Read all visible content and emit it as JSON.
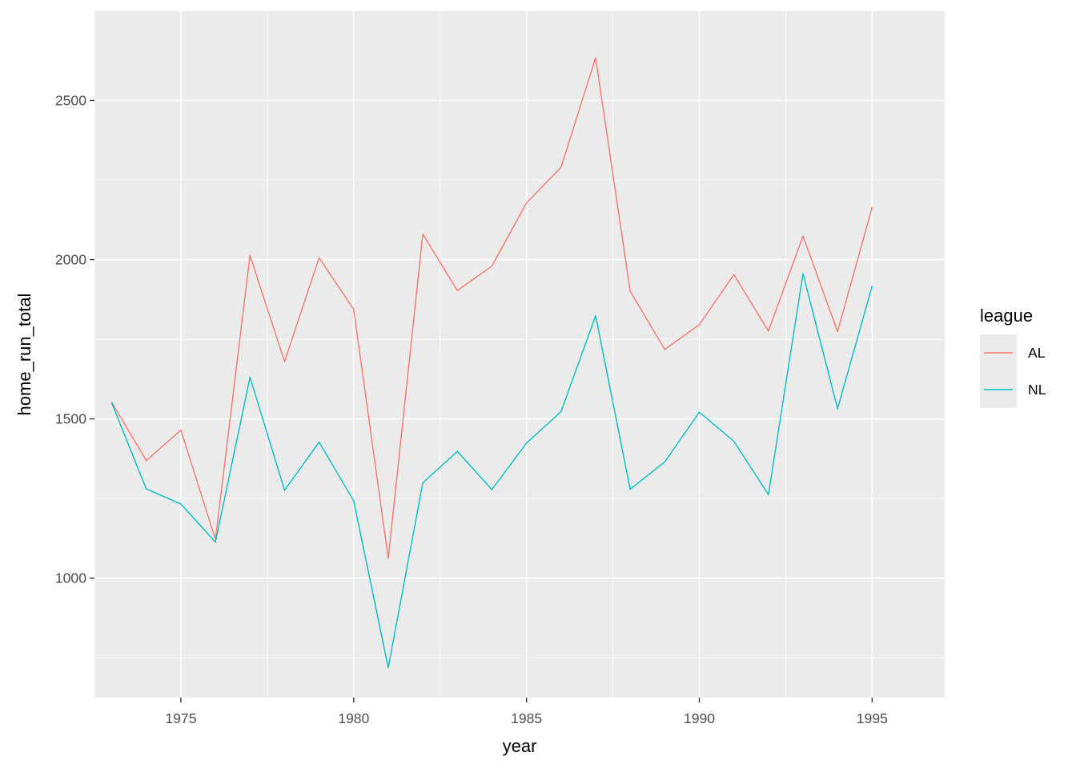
{
  "chart_data": {
    "type": "line",
    "title": "",
    "xlabel": "year",
    "ylabel": "home_run_total",
    "x": [
      1973,
      1974,
      1975,
      1976,
      1977,
      1978,
      1979,
      1980,
      1981,
      1982,
      1983,
      1984,
      1985,
      1986,
      1987,
      1988,
      1989,
      1990,
      1991,
      1992,
      1993,
      1994,
      1995
    ],
    "series": [
      {
        "name": "AL",
        "color": "#F8766D",
        "values": [
          1552,
          1369,
          1465,
          1122,
          2013,
          1680,
          2006,
          1844,
          1062,
          2080,
          1903,
          1980,
          2178,
          2290,
          2634,
          1901,
          1718,
          1796,
          1953,
          1776,
          2074,
          1774,
          2164
        ]
      },
      {
        "name": "NL",
        "color": "#00BFC4",
        "values": [
          1550,
          1280,
          1233,
          1113,
          1631,
          1276,
          1427,
          1243,
          719,
          1299,
          1398,
          1278,
          1424,
          1523,
          1824,
          1279,
          1365,
          1521,
          1430,
          1262,
          1956,
          1532,
          1917
        ]
      }
    ],
    "xlim": [
      1972.5,
      1997.1
    ],
    "ylim": [
      625,
      2780
    ],
    "x_ticks": [
      1975,
      1980,
      1985,
      1990,
      1995
    ],
    "x_minor_ticks": [
      1972.5,
      1977.5,
      1982.5,
      1987.5,
      1992.5
    ],
    "y_ticks": [
      1000,
      1500,
      2000,
      2500
    ],
    "y_minor_ticks": [
      750,
      1250,
      1750,
      2250
    ],
    "grid": true,
    "legend": {
      "title": "league",
      "position": "right"
    },
    "panel_color": "#EBEBEB",
    "grid_color": "#FFFFFF"
  }
}
